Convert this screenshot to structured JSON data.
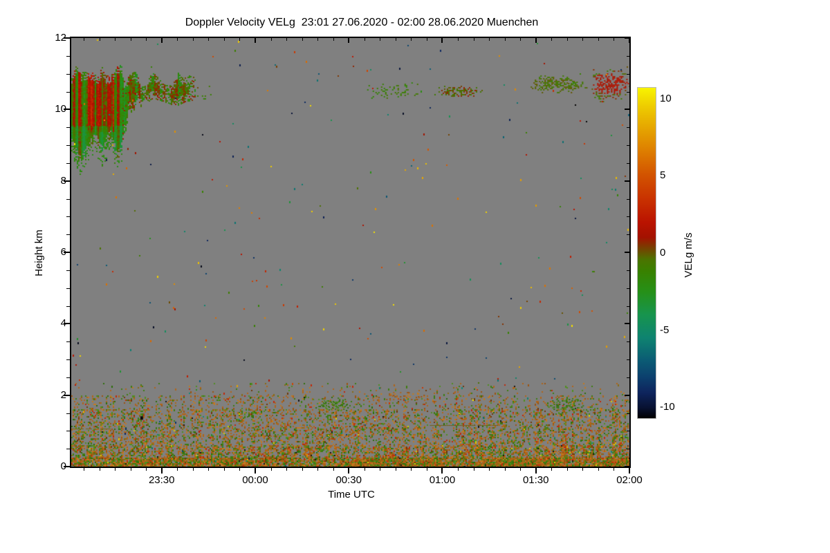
{
  "chart_data": {
    "type": "heatmap",
    "title": "Doppler Velocity VELg  23:01 27.06.2020 - 02:00 28.06.2020 Muenchen",
    "xlabel": "Time UTC",
    "ylabel": "Height km",
    "x_start": "23:01",
    "x_end": "02:00",
    "duration_minutes": 179,
    "x_ticks": [
      {
        "label": "23:30",
        "minute": 29
      },
      {
        "label": "00:00",
        "minute": 59
      },
      {
        "label": "00:30",
        "minute": 89
      },
      {
        "label": "01:00",
        "minute": 119
      },
      {
        "label": "01:30",
        "minute": 149
      },
      {
        "label": "02:00",
        "minute": 179
      }
    ],
    "x_minor_step_minutes": 5,
    "ylim": [
      0,
      12
    ],
    "y_ticks": [
      0,
      2,
      4,
      6,
      8,
      10,
      12
    ],
    "y_minor_step_km": 0.5,
    "background_color": "#808080",
    "grid": false,
    "colorbar": {
      "label": "VELg m/s",
      "vmin": -10.7,
      "vmax": 10.7,
      "ticks": [
        10,
        5,
        0,
        -5,
        -10
      ],
      "stops": [
        [
          10.7,
          "#f8f400"
        ],
        [
          9.5,
          "#eecc00"
        ],
        [
          8.0,
          "#e5a300"
        ],
        [
          6.5,
          "#dd7b00"
        ],
        [
          5.0,
          "#d25200"
        ],
        [
          3.5,
          "#c93200"
        ],
        [
          2.0,
          "#ba1300"
        ],
        [
          1.0,
          "#a31200"
        ],
        [
          0.4,
          "#7c3a00"
        ],
        [
          -0.4,
          "#4c7300"
        ],
        [
          -1.2,
          "#388100"
        ],
        [
          -2.5,
          "#269018"
        ],
        [
          -4.0,
          "#17944e"
        ],
        [
          -5.5,
          "#0e8370"
        ],
        [
          -7.0,
          "#0b5a74"
        ],
        [
          -8.0,
          "#0c416e"
        ],
        [
          -9.0,
          "#0e255e"
        ],
        [
          -10.0,
          "#081233"
        ],
        [
          -10.7,
          "#000000"
        ]
      ]
    },
    "features": {
      "noise_specks": {
        "count": 300,
        "h_min": 0,
        "h_max": 12
      },
      "boundary_layer": {
        "layers": [
          {
            "h0": 0.0,
            "h1": 0.26,
            "density": 0.93
          },
          {
            "h0": 0.26,
            "h1": 0.6,
            "density": 0.5
          },
          {
            "h0": 0.6,
            "h1": 1.1,
            "density": 0.33
          },
          {
            "h0": 1.1,
            "h1": 1.6,
            "density": 0.27
          },
          {
            "h0": 1.6,
            "h1": 2.0,
            "density": 0.15
          },
          {
            "h0": 2.0,
            "h1": 2.35,
            "density": 0.045
          }
        ],
        "palette": [
          [
            "#b06418",
            0.3
          ],
          [
            "#9c5410",
            0.12
          ],
          [
            "#c47a1e",
            0.1
          ],
          [
            "#8a6a12",
            0.07
          ],
          [
            "#3e7c10",
            0.18
          ],
          [
            "#4f8f1e",
            0.09
          ],
          [
            "#2c6e0a",
            0.05
          ],
          [
            "#c22808",
            0.04
          ],
          [
            "#6f3808",
            0.03
          ],
          [
            "#d8c800",
            0.005
          ],
          [
            "#128a78",
            0.005
          ],
          [
            "#141414",
            0.005
          ]
        ]
      },
      "main_cloud": {
        "t0": 0,
        "deep_t1": 16,
        "band_t1": 40.5,
        "h_deep_bottom": 8.4,
        "h_band_bottom": 10.15,
        "h_top": 11.1
      },
      "cloud_patches": [
        {
          "t0": 41,
          "t1": 45,
          "h0": 10.2,
          "h1": 10.7,
          "density": 0.18,
          "style": "green"
        },
        {
          "t0": 94,
          "t1": 112,
          "h0": 10.3,
          "h1": 10.8,
          "density": 0.2,
          "style": "green"
        },
        {
          "t0": 116,
          "t1": 132,
          "h0": 10.35,
          "h1": 10.67,
          "density": 0.6,
          "style": "olive-orange"
        },
        {
          "t0": 146,
          "t1": 163,
          "h0": 10.45,
          "h1": 11.0,
          "density": 0.5,
          "style": "olive"
        },
        {
          "t0": 158,
          "t1": 166,
          "h0": 10.55,
          "h1": 10.85,
          "density": 0.25,
          "style": "olive"
        },
        {
          "t0": 166,
          "t1": 179,
          "h0": 10.2,
          "h1": 11.2,
          "density": 0.55,
          "style": "olive-orange-core"
        },
        {
          "t0": 77,
          "t1": 90,
          "h0": 1.55,
          "h1": 1.95,
          "density": 0.4,
          "style": "green"
        },
        {
          "t0": 152,
          "t1": 166,
          "h0": 1.5,
          "h1": 1.95,
          "density": 0.45,
          "style": "green"
        },
        {
          "t0": 93,
          "t1": 115,
          "h0": 1.85,
          "h1": 2.1,
          "density": 0.25,
          "style": "orange"
        }
      ],
      "thin_lines": [
        {
          "t0": 0,
          "t1": 13,
          "h": 1.07,
          "color": "#7a6612"
        },
        {
          "t0": 115,
          "t1": 137,
          "h": 1.17,
          "color": "#6f5f10"
        }
      ],
      "dark_spots": [
        {
          "t": 22.6,
          "h": 1.37,
          "color": "#0a0a0a"
        }
      ]
    }
  }
}
